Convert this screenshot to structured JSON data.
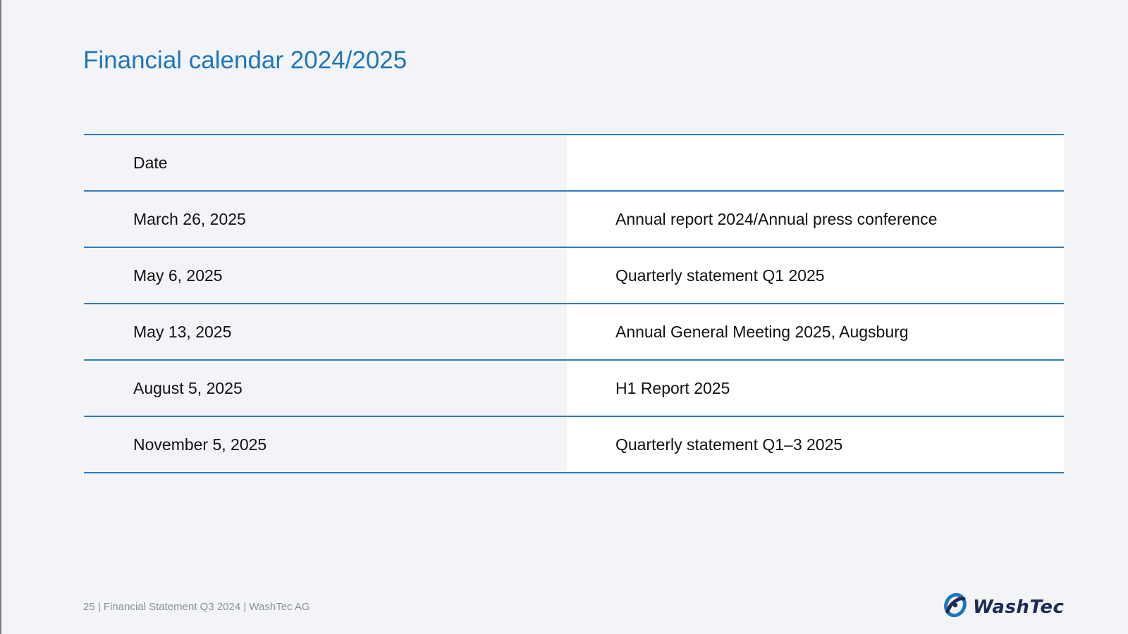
{
  "slide": {
    "title": "Financial calendar 2024/2025"
  },
  "table": {
    "header": {
      "date": "Date",
      "event": ""
    },
    "rows": [
      {
        "date": "March 26, 2025",
        "event": "Annual report 2024/Annual press conference"
      },
      {
        "date": "May 6, 2025",
        "event": "Quarterly statement Q1 2025"
      },
      {
        "date": "May 13, 2025",
        "event": "Annual General Meeting 2025, Augsburg"
      },
      {
        "date": "August 5, 2025",
        "event": "H1 Report 2025"
      },
      {
        "date": "November 5, 2025",
        "event": "Quarterly statement Q1–3 2025"
      }
    ]
  },
  "footer": {
    "text": "25 | Financial Statement Q3 2024 | WashTec AG"
  },
  "logo": {
    "text": "WashTec",
    "icon": "washtec-swirl-icon"
  },
  "colors": {
    "accent": "#1f76bd",
    "rule": "#2c7cc0",
    "background": "#f3f4f8",
    "logo": "#1e2c55"
  }
}
